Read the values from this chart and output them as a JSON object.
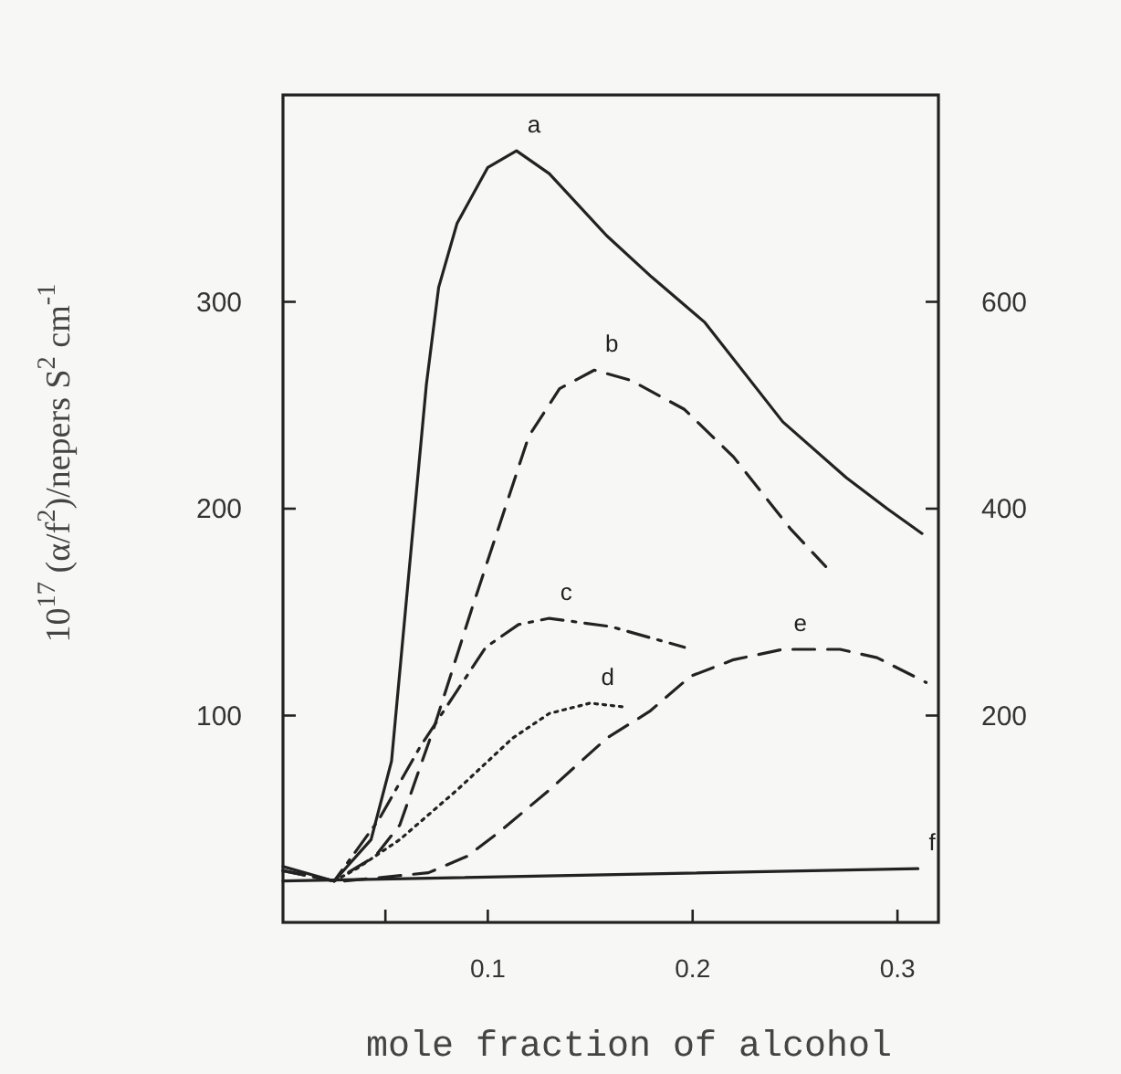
{
  "chart_data": {
    "type": "line",
    "xlabel": "mole fraction of alcohol",
    "ylabel": "10$^{17}$ (α/f$^{2}$)/nepers S$^{2}$ cm$^{-1}$",
    "xlim": [
      0,
      0.32
    ],
    "xticks": [
      {
        "value": 0.05,
        "label": null
      },
      0.1,
      0.2,
      0.3
    ],
    "ylim": [
      0,
      400
    ],
    "yticks": [
      100,
      200,
      300
    ],
    "y2lim": [
      0,
      800
    ],
    "y2ticks": [
      200,
      400,
      600
    ],
    "grid": false,
    "marker": "none",
    "series": [
      {
        "name": "a",
        "color": "#222222",
        "line_style": "solid",
        "x": [
          0,
          0.025,
          0.043,
          0.053,
          0.064,
          0.07,
          0.076,
          0.085,
          0.1,
          0.114,
          0.13,
          0.158,
          0.18,
          0.206,
          0.244,
          0.275,
          0.295,
          0.312
        ],
        "values": [
          27,
          20,
          40,
          78,
          196,
          260,
          307,
          338,
          365,
          373,
          362,
          332,
          312,
          290,
          242,
          215,
          200,
          188
        ]
      },
      {
        "name": "b",
        "color": "#222222",
        "line_style": "dashed",
        "x": [
          0,
          0.025,
          0.045,
          0.057,
          0.074,
          0.092,
          0.105,
          0.12,
          0.135,
          0.152,
          0.17,
          0.196,
          0.22,
          0.248,
          0.265
        ],
        "values": [
          25,
          20,
          32,
          47,
          95,
          151,
          190,
          235,
          258,
          267,
          262,
          248,
          225,
          190,
          172
        ]
      },
      {
        "name": "c",
        "color": "#222222",
        "line_style": "dashdot",
        "x": [
          0,
          0.025,
          0.047,
          0.067,
          0.085,
          0.099,
          0.115,
          0.13,
          0.16,
          0.196
        ],
        "values": [
          25,
          20,
          50,
          85,
          112,
          133,
          144,
          147,
          143,
          133
        ]
      },
      {
        "name": "d",
        "color": "#222222",
        "line_style": "dotted",
        "x": [
          0.025,
          0.036,
          0.057,
          0.085,
          0.112,
          0.13,
          0.15,
          0.168
        ],
        "values": [
          20,
          26,
          40,
          64,
          89,
          101,
          106,
          104
        ]
      },
      {
        "name": "e",
        "color": "#222222",
        "line_style": "dashed",
        "x": [
          0.03,
          0.071,
          0.09,
          0.106,
          0.13,
          0.158,
          0.179,
          0.199,
          0.22,
          0.244,
          0.272,
          0.29,
          0.314
        ],
        "values": [
          20,
          24,
          32,
          44,
          64,
          89,
          102,
          119,
          127,
          132,
          132,
          128,
          116
        ]
      },
      {
        "name": "f",
        "color": "#222222",
        "line_style": "solid",
        "x": [
          0,
          0.31
        ],
        "values": [
          20,
          26
        ]
      }
    ]
  }
}
